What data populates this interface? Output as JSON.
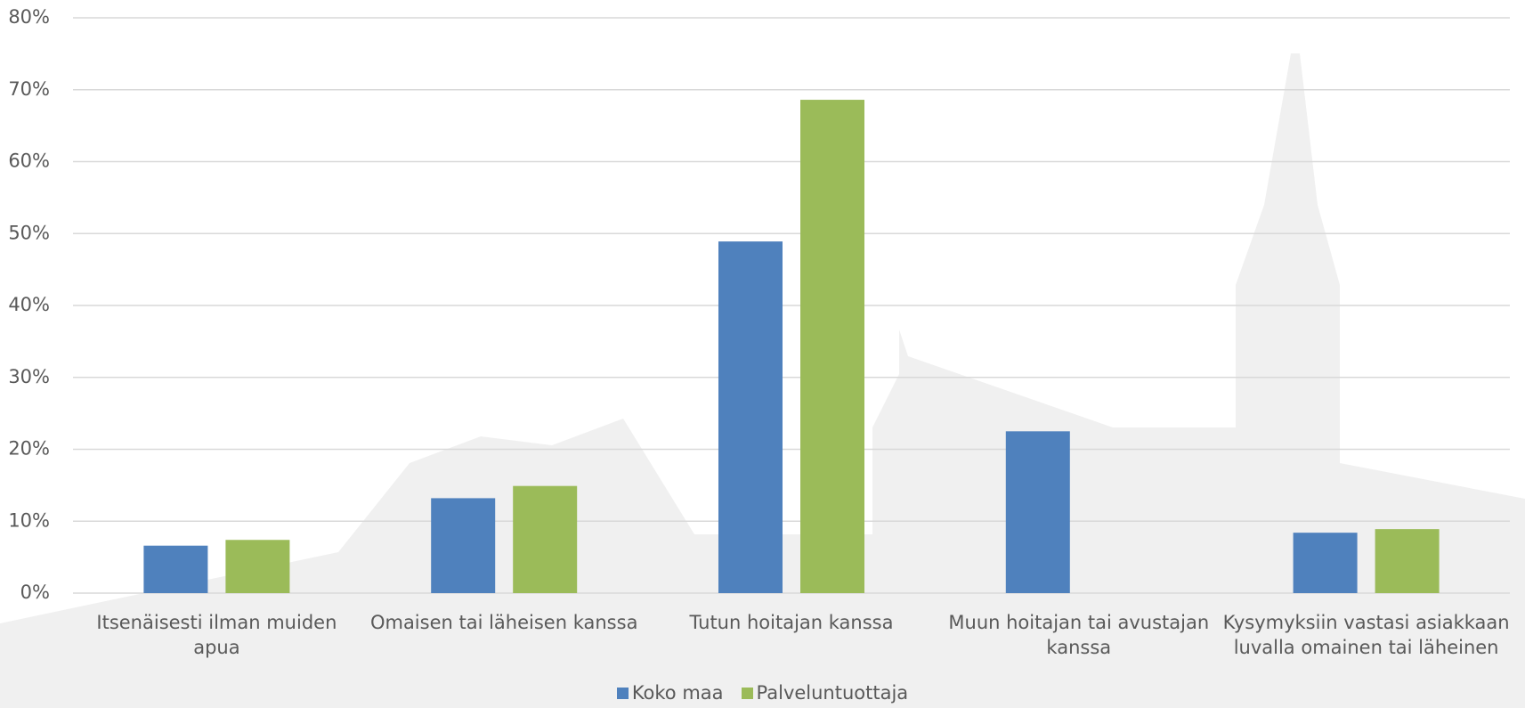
{
  "chart_data": {
    "type": "bar",
    "categories": [
      "Itsenäisesti ilman muiden apua",
      "Omaisen tai läheisen kanssa",
      "Tutun hoitajan kanssa",
      "Muun hoitajan tai avustajan kanssa",
      "Kysymyksiin vastasi asiakkaan luvalla omainen tai läheinen"
    ],
    "series": [
      {
        "name": "Koko maa",
        "color": "#4f81bd",
        "values": [
          6.6,
          13.2,
          48.9,
          22.5,
          8.4
        ]
      },
      {
        "name": "Palveluntuottaja",
        "color": "#9bbb59",
        "values": [
          7.4,
          14.9,
          68.6,
          null,
          8.9
        ]
      }
    ],
    "ylim": [
      0,
      80
    ],
    "yticks": [
      {
        "value": 0,
        "label": "0%"
      },
      {
        "value": 10,
        "label": "10%"
      },
      {
        "value": 20,
        "label": "20%"
      },
      {
        "value": 30,
        "label": "30%"
      },
      {
        "value": 40,
        "label": "40%"
      },
      {
        "value": 50,
        "label": "50%"
      },
      {
        "value": 60,
        "label": "60%"
      },
      {
        "value": 70,
        "label": "70%"
      },
      {
        "value": 80,
        "label": "80%"
      }
    ],
    "grid": true,
    "legend": "bottom"
  }
}
